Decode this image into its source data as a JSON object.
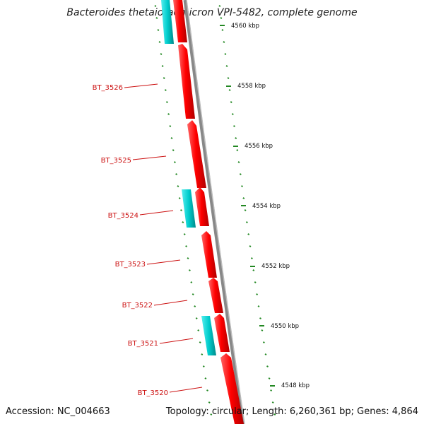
{
  "title": "Bacteroides thetaiotaomicron VPI-5482, complete genome",
  "footer": {
    "accession": "Accession: NC_004663",
    "stats": "Topology: circular; Length: 6,260,361 bp; Genes: 4,864"
  },
  "colors": {
    "forward_gene": "#ff0000",
    "reverse_gene": "#00cccc",
    "gene_label": "#cc1111",
    "backbone": "#888888",
    "tick": "#228822"
  },
  "scale_labels": [
    "4560 kbp",
    "4558 kbp",
    "4556 kbp",
    "4554 kbp",
    "4552 kbp",
    "4550 kbp",
    "4548 kbp"
  ],
  "gene_labels": [
    "BT_3526",
    "BT_3525",
    "BT_3524",
    "BT_3523",
    "BT_3522",
    "BT_3521",
    "BT_3520"
  ]
}
